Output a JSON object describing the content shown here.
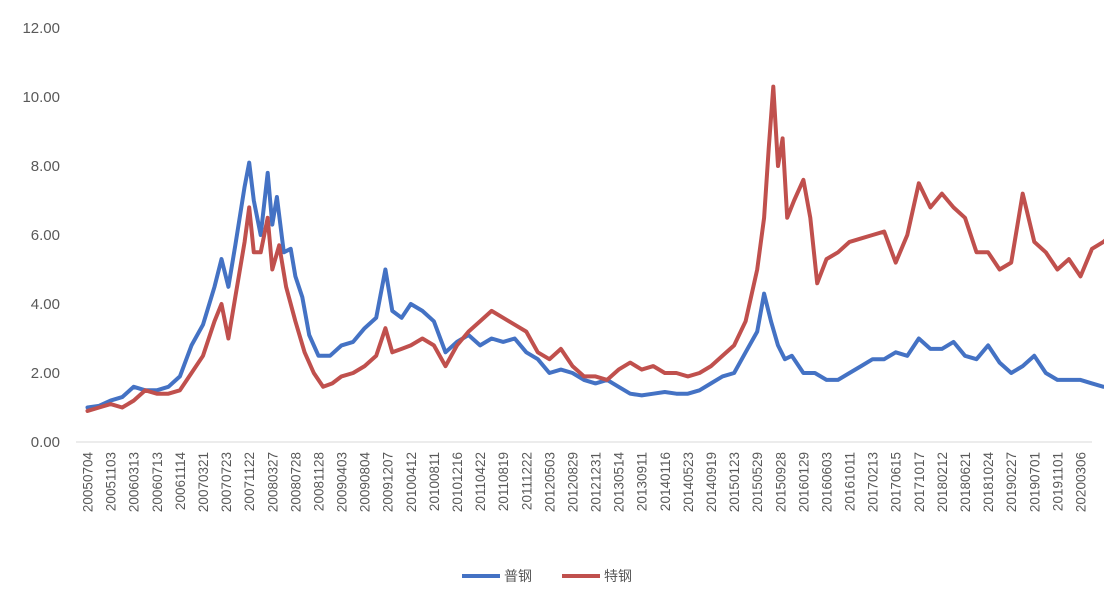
{
  "chart_data": {
    "type": "line",
    "title": "",
    "xlabel": "",
    "ylabel": "",
    "ylim": [
      0,
      12
    ],
    "yticks": [
      "0.00",
      "2.00",
      "4.00",
      "6.00",
      "8.00",
      "10.00",
      "12.00"
    ],
    "x_tick_labels": [
      "20050704",
      "20051103",
      "20060313",
      "20060713",
      "20061114",
      "20070321",
      "20070723",
      "20071122",
      "20080327",
      "20080728",
      "20081128",
      "20090403",
      "20090804",
      "20091207",
      "20100412",
      "20100811",
      "20101216",
      "20110422",
      "20110819",
      "20111222",
      "20120503",
      "20120829",
      "20121231",
      "20130514",
      "20130911",
      "20140116",
      "20140523",
      "20140919",
      "20150123",
      "20150529",
      "20150928",
      "20160129",
      "20160603",
      "20161011",
      "20170213",
      "20170615",
      "20171017",
      "20180212",
      "20180621",
      "20181024",
      "20190227",
      "20190701",
      "20191101",
      "20200306"
    ],
    "legend_position": "bottom-center",
    "grid": false,
    "series": [
      {
        "name": "普钢",
        "color": "#4472C4",
        "points": [
          [
            0,
            1.0
          ],
          [
            0.5,
            1.05
          ],
          [
            1,
            1.2
          ],
          [
            1.5,
            1.3
          ],
          [
            2,
            1.6
          ],
          [
            2.5,
            1.5
          ],
          [
            3,
            1.5
          ],
          [
            3.5,
            1.6
          ],
          [
            4,
            1.9
          ],
          [
            4.5,
            2.8
          ],
          [
            5,
            3.4
          ],
          [
            5.5,
            4.5
          ],
          [
            5.8,
            5.3
          ],
          [
            6.1,
            4.5
          ],
          [
            6.4,
            5.7
          ],
          [
            6.8,
            7.4
          ],
          [
            7.0,
            8.1
          ],
          [
            7.2,
            7.0
          ],
          [
            7.5,
            6.0
          ],
          [
            7.8,
            7.8
          ],
          [
            8.0,
            6.3
          ],
          [
            8.2,
            7.1
          ],
          [
            8.5,
            5.5
          ],
          [
            8.8,
            5.6
          ],
          [
            9.0,
            4.8
          ],
          [
            9.3,
            4.2
          ],
          [
            9.6,
            3.1
          ],
          [
            10,
            2.5
          ],
          [
            10.5,
            2.5
          ],
          [
            11,
            2.8
          ],
          [
            11.5,
            2.9
          ],
          [
            12,
            3.3
          ],
          [
            12.5,
            3.6
          ],
          [
            12.9,
            5.0
          ],
          [
            13.2,
            3.8
          ],
          [
            13.6,
            3.6
          ],
          [
            14,
            4.0
          ],
          [
            14.5,
            3.8
          ],
          [
            15,
            3.5
          ],
          [
            15.5,
            2.6
          ],
          [
            16,
            2.9
          ],
          [
            16.5,
            3.1
          ],
          [
            17,
            2.8
          ],
          [
            17.5,
            3.0
          ],
          [
            18,
            2.9
          ],
          [
            18.5,
            3.0
          ],
          [
            19,
            2.6
          ],
          [
            19.5,
            2.4
          ],
          [
            20,
            2.0
          ],
          [
            20.5,
            2.1
          ],
          [
            21,
            2.0
          ],
          [
            21.5,
            1.8
          ],
          [
            22,
            1.7
          ],
          [
            22.5,
            1.8
          ],
          [
            23,
            1.6
          ],
          [
            23.5,
            1.4
          ],
          [
            24,
            1.35
          ],
          [
            24.5,
            1.4
          ],
          [
            25,
            1.45
          ],
          [
            25.5,
            1.4
          ],
          [
            26,
            1.4
          ],
          [
            26.5,
            1.5
          ],
          [
            27,
            1.7
          ],
          [
            27.5,
            1.9
          ],
          [
            28,
            2.0
          ],
          [
            28.5,
            2.6
          ],
          [
            29,
            3.2
          ],
          [
            29.3,
            4.3
          ],
          [
            29.6,
            3.5
          ],
          [
            29.9,
            2.8
          ],
          [
            30.2,
            2.4
          ],
          [
            30.5,
            2.5
          ],
          [
            31,
            2.0
          ],
          [
            31.5,
            2.0
          ],
          [
            32,
            1.8
          ],
          [
            32.5,
            1.8
          ],
          [
            33,
            2.0
          ],
          [
            33.5,
            2.2
          ],
          [
            34,
            2.4
          ],
          [
            34.5,
            2.4
          ],
          [
            35,
            2.6
          ],
          [
            35.5,
            2.5
          ],
          [
            36,
            3.0
          ],
          [
            36.5,
            2.7
          ],
          [
            37,
            2.7
          ],
          [
            37.5,
            2.9
          ],
          [
            38,
            2.5
          ],
          [
            38.5,
            2.4
          ],
          [
            39,
            2.8
          ],
          [
            39.5,
            2.3
          ],
          [
            40,
            2.0
          ],
          [
            40.5,
            2.2
          ],
          [
            41,
            2.5
          ],
          [
            41.5,
            2.0
          ],
          [
            42,
            1.8
          ],
          [
            42.5,
            1.8
          ],
          [
            43,
            1.8
          ],
          [
            43.5,
            1.7
          ],
          [
            44,
            1.6
          ],
          [
            44.5,
            1.6
          ]
        ]
      },
      {
        "name": "特钢",
        "color": "#C0504D",
        "points": [
          [
            0,
            0.9
          ],
          [
            0.5,
            1.0
          ],
          [
            1,
            1.1
          ],
          [
            1.5,
            1.0
          ],
          [
            2,
            1.2
          ],
          [
            2.5,
            1.5
          ],
          [
            3,
            1.4
          ],
          [
            3.5,
            1.4
          ],
          [
            4,
            1.5
          ],
          [
            4.5,
            2.0
          ],
          [
            5,
            2.5
          ],
          [
            5.5,
            3.5
          ],
          [
            5.8,
            4.0
          ],
          [
            6.1,
            3.0
          ],
          [
            6.4,
            4.2
          ],
          [
            6.8,
            5.8
          ],
          [
            7.0,
            6.8
          ],
          [
            7.2,
            5.5
          ],
          [
            7.5,
            5.5
          ],
          [
            7.8,
            6.5
          ],
          [
            8.0,
            5.0
          ],
          [
            8.3,
            5.7
          ],
          [
            8.6,
            4.5
          ],
          [
            9.0,
            3.5
          ],
          [
            9.4,
            2.6
          ],
          [
            9.8,
            2.0
          ],
          [
            10.2,
            1.6
          ],
          [
            10.6,
            1.7
          ],
          [
            11,
            1.9
          ],
          [
            11.5,
            2.0
          ],
          [
            12,
            2.2
          ],
          [
            12.5,
            2.5
          ],
          [
            12.9,
            3.3
          ],
          [
            13.2,
            2.6
          ],
          [
            13.6,
            2.7
          ],
          [
            14,
            2.8
          ],
          [
            14.5,
            3.0
          ],
          [
            15,
            2.8
          ],
          [
            15.5,
            2.2
          ],
          [
            16,
            2.8
          ],
          [
            16.5,
            3.2
          ],
          [
            17,
            3.5
          ],
          [
            17.5,
            3.8
          ],
          [
            18,
            3.6
          ],
          [
            18.5,
            3.4
          ],
          [
            19,
            3.2
          ],
          [
            19.5,
            2.6
          ],
          [
            20,
            2.4
          ],
          [
            20.5,
            2.7
          ],
          [
            21,
            2.2
          ],
          [
            21.5,
            1.9
          ],
          [
            22,
            1.9
          ],
          [
            22.5,
            1.8
          ],
          [
            23,
            2.1
          ],
          [
            23.5,
            2.3
          ],
          [
            24,
            2.1
          ],
          [
            24.5,
            2.2
          ],
          [
            25,
            2.0
          ],
          [
            25.5,
            2.0
          ],
          [
            26,
            1.9
          ],
          [
            26.5,
            2.0
          ],
          [
            27,
            2.2
          ],
          [
            27.5,
            2.5
          ],
          [
            28,
            2.8
          ],
          [
            28.5,
            3.5
          ],
          [
            29,
            5.0
          ],
          [
            29.3,
            6.5
          ],
          [
            29.5,
            8.5
          ],
          [
            29.7,
            10.3
          ],
          [
            29.9,
            8.0
          ],
          [
            30.1,
            8.8
          ],
          [
            30.3,
            6.5
          ],
          [
            30.6,
            7.0
          ],
          [
            31,
            7.6
          ],
          [
            31.3,
            6.5
          ],
          [
            31.6,
            4.6
          ],
          [
            32,
            5.3
          ],
          [
            32.5,
            5.5
          ],
          [
            33,
            5.8
          ],
          [
            33.5,
            5.9
          ],
          [
            34,
            6.0
          ],
          [
            34.5,
            6.1
          ],
          [
            35,
            5.2
          ],
          [
            35.5,
            6.0
          ],
          [
            36,
            7.5
          ],
          [
            36.5,
            6.8
          ],
          [
            37,
            7.2
          ],
          [
            37.5,
            6.8
          ],
          [
            38,
            6.5
          ],
          [
            38.5,
            5.5
          ],
          [
            39,
            5.5
          ],
          [
            39.5,
            5.0
          ],
          [
            40,
            5.2
          ],
          [
            40.5,
            7.2
          ],
          [
            41,
            5.8
          ],
          [
            41.5,
            5.5
          ],
          [
            42,
            5.0
          ],
          [
            42.5,
            5.3
          ],
          [
            43,
            4.8
          ],
          [
            43.5,
            5.6
          ],
          [
            44,
            5.8
          ],
          [
            44.5,
            6.1
          ]
        ]
      }
    ]
  }
}
